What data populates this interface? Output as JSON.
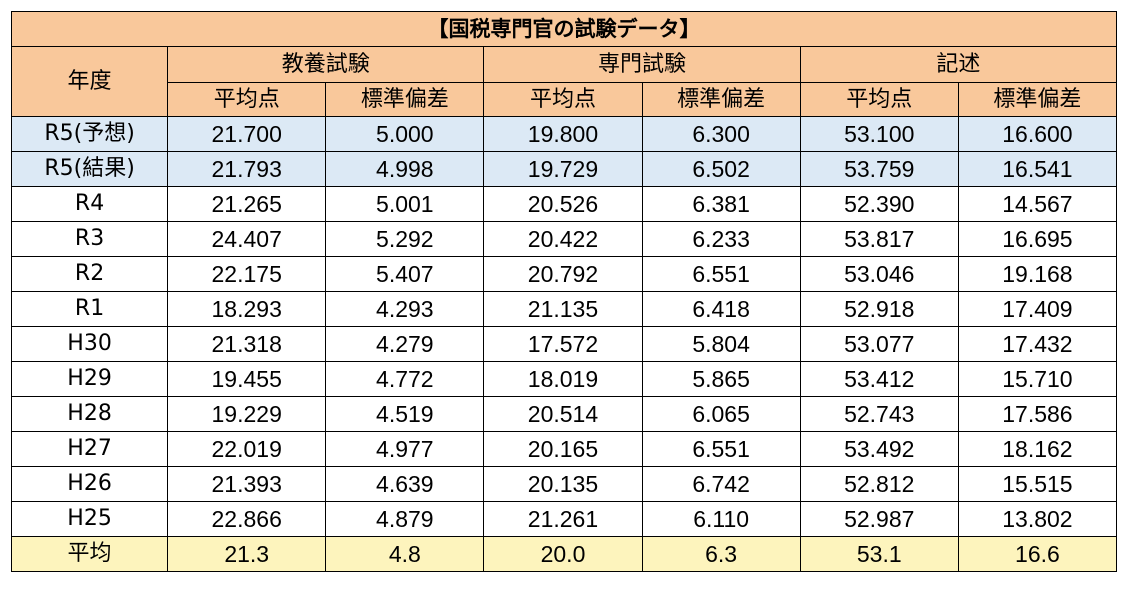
{
  "table": {
    "title": "【国税専門官の試験データ】",
    "year_header": "年度",
    "groups": [
      "教養試験",
      "専門試験",
      "記述"
    ],
    "sub_headers": [
      "平均点",
      "標準偏差",
      "平均点",
      "標準偏差",
      "平均点",
      "標準偏差"
    ],
    "rows": [
      {
        "year": "R5(予想)",
        "values": [
          "21.700",
          "5.000",
          "19.800",
          "6.300",
          "53.100",
          "16.600"
        ]
      },
      {
        "year": "R5(結果)",
        "values": [
          "21.793",
          "4.998",
          "19.729",
          "6.502",
          "53.759",
          "16.541"
        ]
      },
      {
        "year": "R4",
        "values": [
          "21.265",
          "5.001",
          "20.526",
          "6.381",
          "52.390",
          "14.567"
        ]
      },
      {
        "year": "R3",
        "values": [
          "24.407",
          "5.292",
          "20.422",
          "6.233",
          "53.817",
          "16.695"
        ]
      },
      {
        "year": "R2",
        "values": [
          "22.175",
          "5.407",
          "20.792",
          "6.551",
          "53.046",
          "19.168"
        ]
      },
      {
        "year": "R1",
        "values": [
          "18.293",
          "4.293",
          "21.135",
          "6.418",
          "52.918",
          "17.409"
        ]
      },
      {
        "year": "H30",
        "values": [
          "21.318",
          "4.279",
          "17.572",
          "5.804",
          "53.077",
          "17.432"
        ]
      },
      {
        "year": "H29",
        "values": [
          "19.455",
          "4.772",
          "18.019",
          "5.865",
          "53.412",
          "15.710"
        ]
      },
      {
        "year": "H28",
        "values": [
          "19.229",
          "4.519",
          "20.514",
          "6.065",
          "52.743",
          "17.586"
        ]
      },
      {
        "year": "H27",
        "values": [
          "22.019",
          "4.977",
          "20.165",
          "6.551",
          "53.492",
          "18.162"
        ]
      },
      {
        "year": "H26",
        "values": [
          "21.393",
          "4.639",
          "20.135",
          "6.742",
          "52.812",
          "15.515"
        ]
      },
      {
        "year": "H25",
        "values": [
          "22.866",
          "4.879",
          "21.261",
          "6.110",
          "52.987",
          "13.802"
        ]
      }
    ],
    "average": {
      "label": "平均",
      "values": [
        "21.3",
        "4.8",
        "20.0",
        "6.3",
        "53.1",
        "16.6"
      ]
    }
  },
  "colors": {
    "header_bg": "#f9c89b",
    "highlight_bg": "#dce9f5",
    "average_bg": "#fdf4bd",
    "border": "#000000"
  }
}
